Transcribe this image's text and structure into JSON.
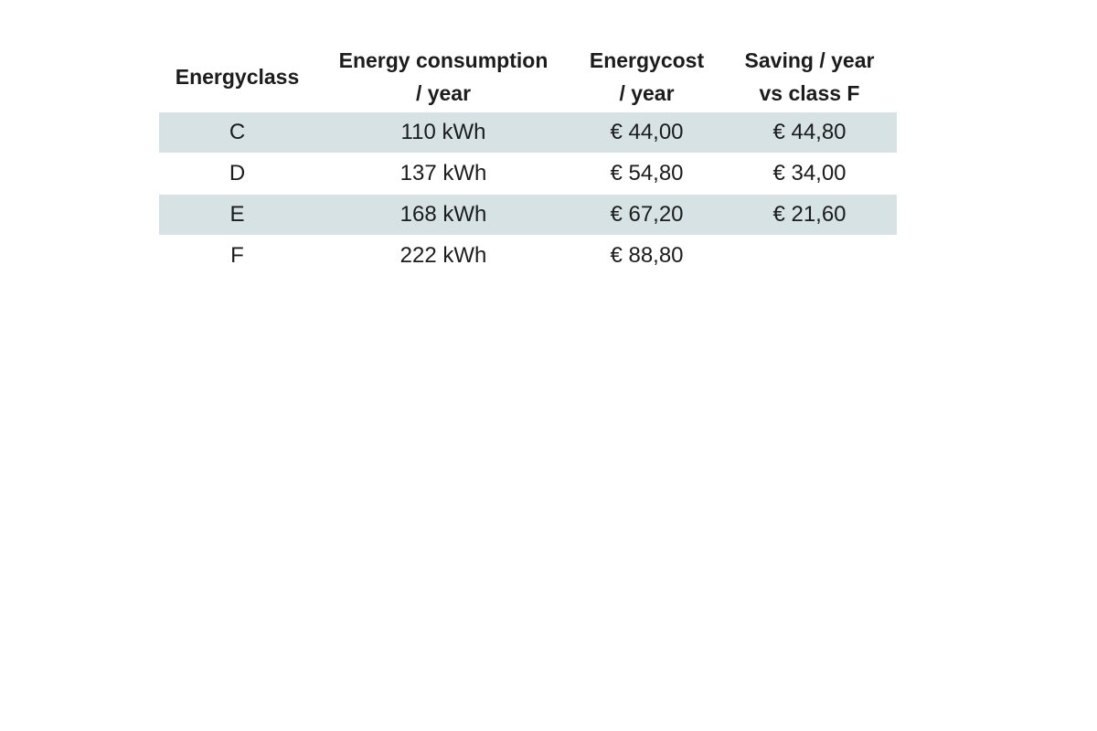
{
  "table": {
    "header": {
      "col0": {
        "line1": "Energyclass",
        "line2": ""
      },
      "col1": {
        "line1": "Energy consumption",
        "line2": "/ year"
      },
      "col2": {
        "line1": "Energycost",
        "line2": "/ year"
      },
      "col3": {
        "line1": "Saving / year",
        "line2": "vs class F"
      }
    },
    "rows": [
      {
        "energyclass": "C",
        "consumption": "110 kWh",
        "cost": "€ 44,00",
        "saving": "€ 44,80"
      },
      {
        "energyclass": "D",
        "consumption": "137 kWh",
        "cost": "€ 54,80",
        "saving": "€ 34,00"
      },
      {
        "energyclass": "E",
        "consumption": "168 kWh",
        "cost": "€ 67,20",
        "saving": "€ 21,60"
      },
      {
        "energyclass": "F",
        "consumption": "222 kWh",
        "cost": "€ 88,80",
        "saving": ""
      }
    ],
    "colors": {
      "shaded_row": "#d6e2e4",
      "text": "#1c1c1c",
      "background": "#ffffff"
    }
  },
  "chart_data": {
    "type": "table",
    "columns": [
      "Energyclass",
      "Energy consumption / year",
      "Energycost / year",
      "Saving / year vs class F"
    ],
    "rows": [
      [
        "C",
        "110 kWh",
        "€ 44,00",
        "€ 44,80"
      ],
      [
        "D",
        "137 kWh",
        "€ 54,80",
        "€ 34,00"
      ],
      [
        "E",
        "168 kWh",
        "€ 67,20",
        "€ 21,60"
      ],
      [
        "F",
        "222 kWh",
        "€ 88,80",
        ""
      ]
    ],
    "notes": {
      "consumption_kwh_per_year": [
        110,
        137,
        168,
        222
      ],
      "cost_eur_per_year": [
        44.0,
        54.8,
        67.2,
        88.8
      ],
      "saving_eur_per_year_vs_class_F": [
        44.8,
        34.0,
        21.6,
        null
      ],
      "shaded_rows": [
        "C",
        "E"
      ],
      "layout": "header row bold, two-line column headers, alternating shaded bands"
    }
  }
}
